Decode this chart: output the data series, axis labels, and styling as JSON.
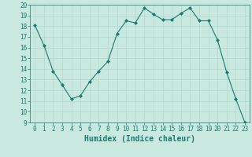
{
  "x": [
    0,
    1,
    2,
    3,
    4,
    5,
    6,
    7,
    8,
    9,
    10,
    11,
    12,
    13,
    14,
    15,
    16,
    17,
    18,
    19,
    20,
    21,
    22,
    23
  ],
  "y": [
    18.1,
    16.2,
    13.8,
    12.5,
    11.2,
    11.5,
    12.8,
    13.8,
    14.7,
    17.3,
    18.5,
    18.3,
    19.7,
    19.1,
    18.6,
    18.6,
    19.2,
    19.7,
    18.5,
    18.5,
    16.7,
    13.7,
    11.2,
    9.0
  ],
  "xlabel": "Humidex (Indice chaleur)",
  "ylim": [
    9,
    20
  ],
  "xlim_min": -0.5,
  "xlim_max": 23.5,
  "yticks": [
    9,
    10,
    11,
    12,
    13,
    14,
    15,
    16,
    17,
    18,
    19,
    20
  ],
  "xticks": [
    0,
    1,
    2,
    3,
    4,
    5,
    6,
    7,
    8,
    9,
    10,
    11,
    12,
    13,
    14,
    15,
    16,
    17,
    18,
    19,
    20,
    21,
    22,
    23
  ],
  "line_color": "#1a7a6e",
  "marker": "D",
  "marker_size": 2,
  "bg_color": "#c8e8e0",
  "grid_color": "#b0d8d0",
  "tick_label_fontsize": 5.5,
  "xlabel_fontsize": 7
}
